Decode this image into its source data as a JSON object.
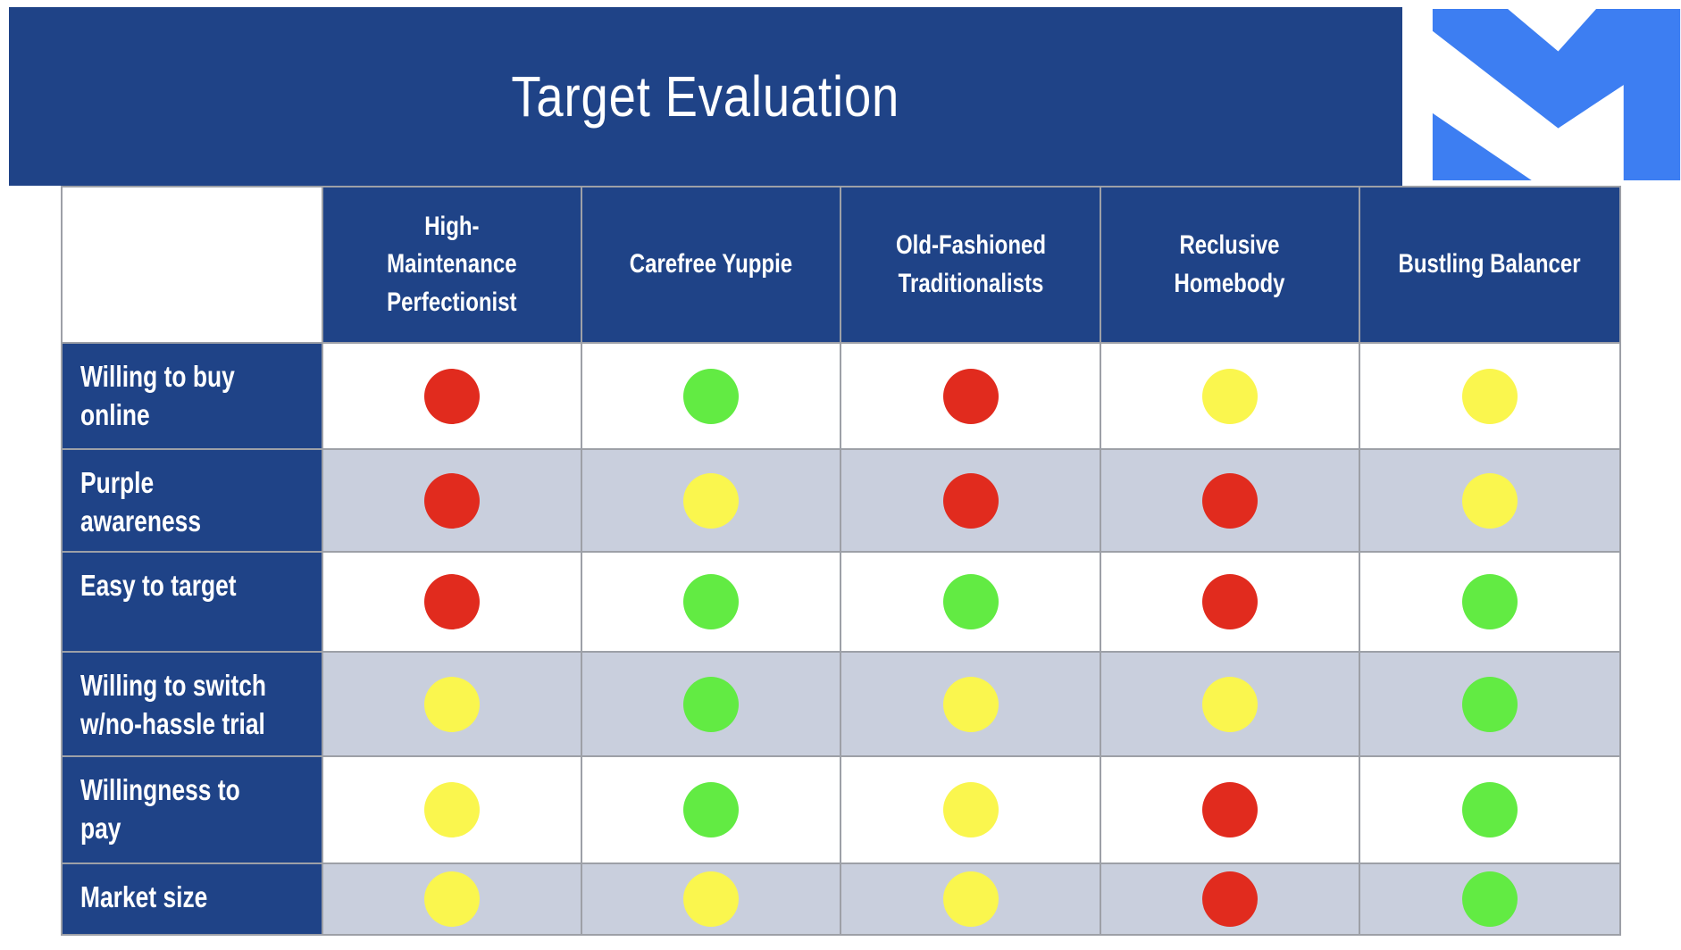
{
  "header": {
    "title": "Target Evaluation"
  },
  "logo": {
    "icon": "m-logo"
  },
  "table": {
    "columns": [
      "High-\nMaintenance\nPerfectionist",
      "Carefree Yuppie",
      "Old-Fashioned\nTraditionalists",
      "Reclusive\nHomebody",
      "Bustling Balancer"
    ],
    "rows": [
      {
        "label": "Willing to buy online",
        "ratings": [
          "red",
          "green",
          "red",
          "yellow",
          "yellow"
        ]
      },
      {
        "label": "Purple awareness",
        "ratings": [
          "red",
          "yellow",
          "red",
          "red",
          "yellow"
        ]
      },
      {
        "label": "Easy to target",
        "ratings": [
          "red",
          "green",
          "green",
          "red",
          "green"
        ]
      },
      {
        "label": "Willing to switch\nw/no-hassle trial",
        "ratings": [
          "yellow",
          "green",
          "yellow",
          "yellow",
          "green"
        ]
      },
      {
        "label": "Willingness to pay",
        "ratings": [
          "yellow",
          "green",
          "yellow",
          "red",
          "green"
        ]
      },
      {
        "label": "Market size",
        "ratings": [
          "yellow",
          "yellow",
          "yellow",
          "red",
          "green"
        ]
      }
    ]
  },
  "chart_data": {
    "type": "table",
    "title": "Target Evaluation",
    "columns": [
      "High-Maintenance Perfectionist",
      "Carefree Yuppie",
      "Old-Fashioned Traditionalists",
      "Reclusive Homebody",
      "Bustling Balancer"
    ],
    "rows": [
      "Willing to buy online",
      "Purple awareness",
      "Easy to target",
      "Willing to switch w/no-hassle trial",
      "Willingness to pay",
      "Market size"
    ],
    "values": [
      [
        "red",
        "green",
        "red",
        "yellow",
        "yellow"
      ],
      [
        "red",
        "yellow",
        "red",
        "red",
        "yellow"
      ],
      [
        "red",
        "green",
        "green",
        "red",
        "green"
      ],
      [
        "yellow",
        "green",
        "yellow",
        "yellow",
        "green"
      ],
      [
        "yellow",
        "green",
        "yellow",
        "red",
        "green"
      ],
      [
        "yellow",
        "yellow",
        "yellow",
        "red",
        "green"
      ]
    ]
  },
  "colors": {
    "navy": "#1F4387",
    "logo_blue": "#3D7EF2",
    "band": "#C9CFDD",
    "grid": "#9DA0A7",
    "red": "#E12B1E",
    "yellow": "#FAF64E",
    "green": "#62EB43"
  }
}
